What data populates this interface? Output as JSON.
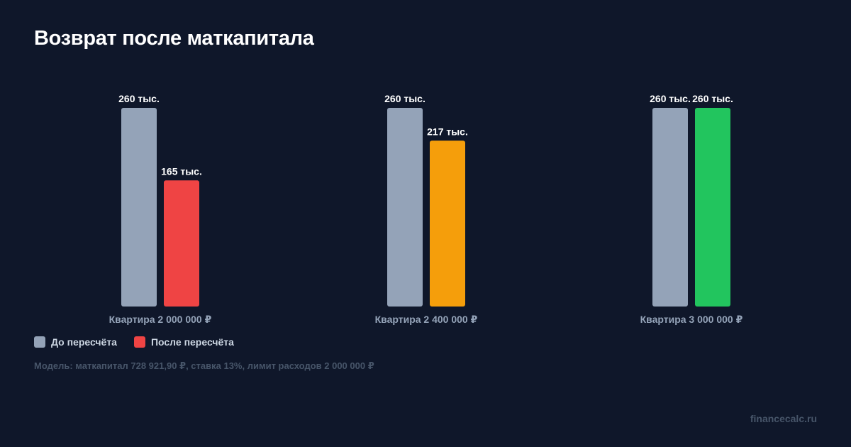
{
  "title": "Возврат после маткапитала",
  "chart_data": {
    "type": "bar",
    "categories": [
      "Квартира 2 000 000 ₽",
      "Квартира 2 400 000 ₽",
      "Квартира 3 000 000 ₽"
    ],
    "series": [
      {
        "name": "До пересчёта",
        "values": [
          260,
          260,
          260
        ],
        "value_labels": [
          "260 тыс.",
          "260 тыс.",
          "260 тыс."
        ],
        "colors": [
          "#94a3b8",
          "#94a3b8",
          "#94a3b8"
        ]
      },
      {
        "name": "После пересчёта",
        "values": [
          165,
          217,
          260
        ],
        "value_labels": [
          "165 тыс.",
          "217 тыс.",
          "260 тыс."
        ],
        "colors": [
          "#ef4444",
          "#f59e0b",
          "#22c55e"
        ]
      }
    ],
    "ylim": [
      0,
      260
    ],
    "grid": false,
    "legend_position": "bottom-left"
  },
  "legend": [
    {
      "label": "До пересчёта",
      "color": "#94a3b8"
    },
    {
      "label": "После пересчёта",
      "color": "#ef4444"
    }
  ],
  "note": "Модель: маткапитал 728 921,90 ₽, ставка 13%, лимит расходов 2 000 000 ₽",
  "brand": "financecalc.ru"
}
